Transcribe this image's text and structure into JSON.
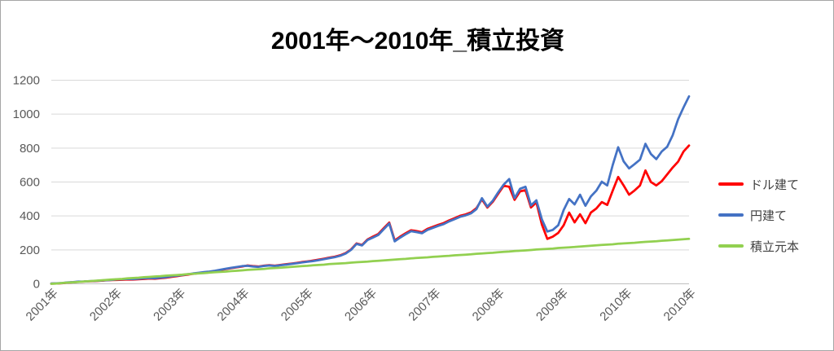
{
  "title": "2001年～2010年_積立投資",
  "colors": {
    "dollar_series": "#FF0000",
    "yen_series": "#4472C4",
    "principal_series": "#92D050",
    "gridline": "#D9D9D9",
    "axis_line": "#BFBFBF",
    "tick_text": "#595959",
    "legend_text": "#404040",
    "frame_border": "#A6A6A6"
  },
  "legend": {
    "items": [
      {
        "label": "ドル建て",
        "color": "#FF0000"
      },
      {
        "label": "円建て",
        "color": "#4472C4"
      },
      {
        "label": "積立元本",
        "color": "#92D050"
      }
    ]
  },
  "chart_data": {
    "type": "line",
    "title": "2001年～2010年_積立投資",
    "xlabel": "",
    "ylabel": "",
    "ylim": [
      0,
      1200
    ],
    "y_ticks": [
      0,
      200,
      400,
      600,
      800,
      1000,
      1200
    ],
    "x_tick_labels": [
      "2001年",
      "2002年",
      "2003年",
      "2004年",
      "2005年",
      "2006年",
      "2007年",
      "2008年",
      "2009年",
      "2010年",
      "2010年"
    ],
    "grid": "horizontal",
    "legend_position": "right",
    "series": [
      {
        "name": "ドル建て",
        "color": "#FF0000",
        "values": [
          1,
          2,
          4,
          7,
          9,
          12,
          13,
          15,
          16,
          18,
          20,
          22,
          23,
          24,
          26,
          25,
          27,
          29,
          31,
          30,
          33,
          36,
          41,
          45,
          50,
          54,
          59,
          63,
          67,
          70,
          75,
          81,
          87,
          92,
          97,
          102,
          108,
          104,
          102,
          107,
          110,
          107,
          111,
          115,
          119,
          123,
          128,
          132,
          137,
          142,
          148,
          154,
          160,
          168,
          181,
          203,
          238,
          229,
          261,
          278,
          294,
          328,
          361,
          256,
          278,
          298,
          316,
          311,
          304,
          324,
          336,
          348,
          358,
          374,
          387,
          401,
          409,
          421,
          446,
          498,
          450,
          484,
          532,
          578,
          572,
          495,
          545,
          552,
          450,
          480,
          350,
          265,
          278,
          300,
          345,
          420,
          362,
          410,
          357,
          420,
          444,
          482,
          465,
          549,
          630,
          580,
          525,
          550,
          580,
          668,
          600,
          580,
          605,
          645,
          685,
          720,
          780,
          815
        ]
      },
      {
        "name": "円建て",
        "color": "#4472C4",
        "values": [
          2,
          3,
          5,
          8,
          10,
          13,
          14,
          16,
          17,
          19,
          21,
          23,
          26,
          27,
          29,
          28,
          30,
          32,
          34,
          33,
          36,
          39,
          44,
          48,
          52,
          56,
          61,
          65,
          69,
          72,
          77,
          83,
          89,
          94,
          99,
          104,
          106,
          102,
          100,
          105,
          108,
          105,
          109,
          113,
          117,
          121,
          126,
          130,
          134,
          139,
          145,
          151,
          157,
          165,
          178,
          200,
          235,
          226,
          258,
          272,
          288,
          322,
          355,
          250,
          272,
          292,
          310,
          305,
          298,
          318,
          330,
          342,
          352,
          368,
          381,
          395,
          403,
          415,
          440,
          505,
          455,
          490,
          540,
          585,
          618,
          505,
          560,
          572,
          462,
          492,
          380,
          308,
          318,
          345,
          435,
          500,
          468,
          525,
          460,
          515,
          549,
          602,
          580,
          700,
          805,
          722,
          680,
          705,
          732,
          825,
          765,
          735,
          780,
          808,
          875,
          970,
          1040,
          1105
        ]
      },
      {
        "name": "積立元本",
        "color": "#92D050",
        "values": [
          0,
          2,
          5,
          7,
          9,
          11,
          14,
          16,
          18,
          20,
          23,
          25,
          27,
          29,
          32,
          34,
          36,
          39,
          41,
          43,
          45,
          48,
          50,
          52,
          54,
          57,
          59,
          61,
          63,
          66,
          68,
          70,
          72,
          75,
          77,
          79,
          82,
          84,
          86,
          88,
          91,
          93,
          95,
          97,
          100,
          102,
          104,
          106,
          109,
          111,
          113,
          116,
          118,
          120,
          122,
          125,
          127,
          129,
          131,
          134,
          136,
          138,
          140,
          143,
          145,
          147,
          150,
          152,
          154,
          156,
          159,
          161,
          163,
          165,
          168,
          170,
          172,
          174,
          177,
          179,
          181,
          183,
          186,
          188,
          190,
          193,
          195,
          197,
          199,
          202,
          204,
          206,
          208,
          211,
          213,
          215,
          217,
          220,
          222,
          224,
          227,
          229,
          231,
          233,
          236,
          238,
          240,
          242,
          245,
          247,
          249,
          251,
          254,
          256,
          258,
          260,
          263,
          265
        ]
      }
    ]
  }
}
